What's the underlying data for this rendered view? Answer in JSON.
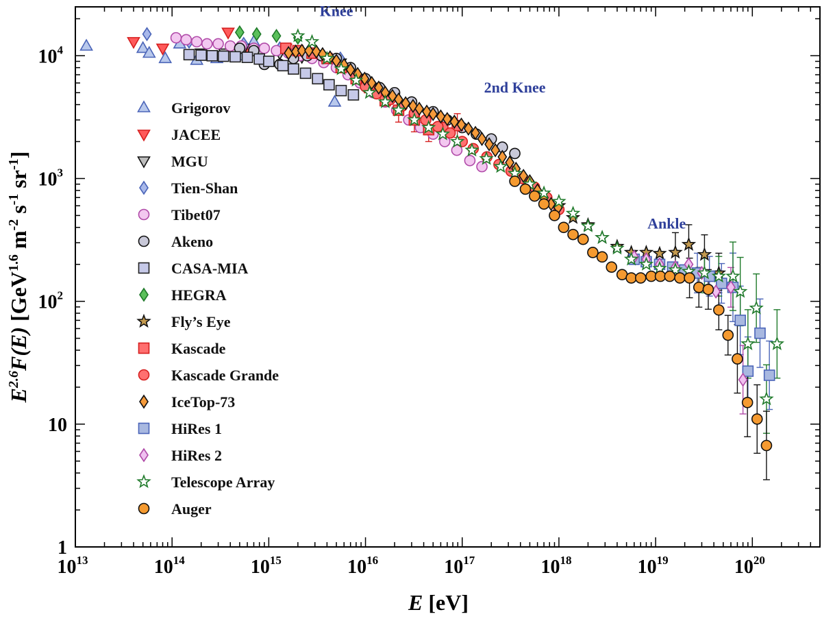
{
  "chart_data": {
    "type": "scatter",
    "xscale": "log",
    "yscale": "log",
    "xlim": [
      10000000000000.0,
      5e+20
    ],
    "ylim": [
      1,
      25000
    ],
    "xlabel": {
      "var": "E",
      "unit": " [eV]"
    },
    "ylabel": {
      "e": "E",
      "e_sup": "2.6",
      "f": "F(E)",
      "open": " [GeV",
      "gev_sup": "1.6",
      "m": " m",
      "m_sup": "-2",
      "s": " s",
      "s_sup": "-1",
      "sr": " sr",
      "sr_sup": "-1",
      "close": "]"
    },
    "x_ticks": [
      {
        "base": "10",
        "exp": "13",
        "value": 10000000000000.0
      },
      {
        "base": "10",
        "exp": "14",
        "value": 100000000000000.0
      },
      {
        "base": "10",
        "exp": "15",
        "value": 1000000000000000.0
      },
      {
        "base": "10",
        "exp": "16",
        "value": 1e+16
      },
      {
        "base": "10",
        "exp": "17",
        "value": 1e+17
      },
      {
        "base": "10",
        "exp": "18",
        "value": 1e+18
      },
      {
        "base": "10",
        "exp": "19",
        "value": 1e+19
      },
      {
        "base": "10",
        "exp": "20",
        "value": 1e+20
      }
    ],
    "y_ticks": [
      {
        "base": "1",
        "exp": "",
        "value": 1
      },
      {
        "base": "10",
        "exp": "",
        "value": 10
      },
      {
        "base": "10",
        "exp": "2",
        "value": 100
      },
      {
        "base": "10",
        "exp": "3",
        "value": 1000
      },
      {
        "base": "10",
        "exp": "4",
        "value": 10000
      }
    ],
    "annotations": [
      {
        "text": "Knee",
        "x": 5000000000000000.0,
        "y": 21000
      },
      {
        "text": "2nd Knee",
        "x": 3.5e+17,
        "y": 5000
      },
      {
        "text": "Ankle",
        "x": 1.3e+19,
        "y": 390
      }
    ],
    "series": [
      {
        "name": "Grigorov",
        "marker": "triangle-up",
        "fill": "#b8c8ec",
        "stroke": "#4a64b8",
        "x": [
          13000000000000.0,
          50000000000000.0,
          58000000000000.0,
          85000000000000.0,
          120000000000000.0,
          180000000000000.0,
          290000000000000.0,
          500000000000000.0,
          700000000000000.0,
          4800000000000000.0
        ],
        "y": [
          12000,
          11500,
          10500,
          9500,
          12500,
          9200,
          9500,
          10000,
          13000,
          4200
        ]
      },
      {
        "name": "JACEE",
        "marker": "triangle-down",
        "fill": "#ff5a5a",
        "stroke": "#d61f1f",
        "x": [
          40000000000000.0,
          80000000000000.0,
          380000000000000.0,
          650000000000000.0,
          1500000000000000.0
        ],
        "y": [
          13000,
          11500,
          15500,
          10500,
          11500
        ]
      },
      {
        "name": "MGU",
        "marker": "triangle-down",
        "fill": "#bdbdbd",
        "stroke": "#111111",
        "x": [
          200000000000000.0,
          350000000000000.0,
          550000000000000.0,
          800000000000000.0,
          1300000000000000.0,
          2200000000000000.0,
          3500000000000000.0,
          5500000000000000.0
        ],
        "y": [
          10500,
          10500,
          11500,
          10500,
          10500,
          9800,
          9500,
          8700
        ]
      },
      {
        "name": "Tien-Shan",
        "marker": "diamond",
        "fill": "#a8b8ea",
        "stroke": "#4a64b8",
        "x": [
          55000000000000.0,
          150000000000000.0,
          550000000000000.0,
          1300000000000000.0,
          2500000000000000.0,
          5500000000000000.0
        ],
        "y": [
          15000,
          13000,
          12500,
          11500,
          10500,
          9500
        ]
      },
      {
        "name": "Tibet07",
        "marker": "circle",
        "fill": "#f3c8f0",
        "stroke": "#b04aa8",
        "x": [
          110000000000000.0,
          140000000000000.0,
          180000000000000.0,
          230000000000000.0,
          300000000000000.0,
          400000000000000.0,
          520000000000000.0,
          700000000000000.0,
          900000000000000.0,
          1200000000000000.0,
          1600000000000000.0,
          2100000000000000.0,
          2800000000000000.0,
          3700000000000000.0,
          5000000000000000.0,
          6600000000000000.0,
          8800000000000000.0,
          1.2e+16,
          1.6e+16,
          2.1e+16,
          2.8e+16,
          3.7e+16,
          5e+16,
          6.6e+16,
          8.8e+16,
          1.2e+17,
          1.6e+17
        ],
        "y": [
          14000,
          13500,
          13000,
          12500,
          12500,
          12000,
          12000,
          11500,
          11500,
          11000,
          10500,
          10000,
          9500,
          8800,
          8000,
          7000,
          6000,
          5000,
          4200,
          3600,
          3000,
          2600,
          2300,
          2000,
          1700,
          1400,
          1250
        ]
      },
      {
        "name": "Akeno",
        "marker": "circle",
        "fill": "#c8c8d8",
        "stroke": "#111111",
        "x": [
          500000000000000.0,
          700000000000000.0,
          900000000000000.0,
          1300000000000000.0,
          1800000000000000.0,
          2500000000000000.0,
          3500000000000000.0,
          5000000000000000.0,
          7000000000000000.0,
          1e+16,
          1.4e+16,
          2e+16,
          3e+16,
          5e+16,
          7e+16,
          1e+17,
          1.4e+17,
          2e+17,
          2.6e+17,
          3.5e+17
        ],
        "y": [
          11500,
          11000,
          8500,
          8500,
          9500,
          10000,
          10000,
          9500,
          8000,
          6500,
          5500,
          5000,
          4200,
          3500,
          3000,
          2600,
          2300,
          2100,
          1800,
          1600
        ]
      },
      {
        "name": "CASA-MIA",
        "marker": "square",
        "fill": "#c6c9e8",
        "stroke": "#222222",
        "x": [
          150000000000000.0,
          200000000000000.0,
          260000000000000.0,
          340000000000000.0,
          450000000000000.0,
          600000000000000.0,
          800000000000000.0,
          1000000000000000.0,
          1400000000000000.0,
          1800000000000000.0,
          2400000000000000.0,
          3200000000000000.0,
          4200000000000000.0,
          5600000000000000.0,
          7500000000000000.0
        ],
        "y": [
          10200,
          10100,
          10000,
          9900,
          9800,
          9700,
          9400,
          9000,
          8300,
          7800,
          7200,
          6500,
          5800,
          5200,
          4800
        ]
      },
      {
        "name": "HEGRA",
        "marker": "diamond",
        "fill": "#5bc05b",
        "stroke": "#1f7a2a",
        "x": [
          500000000000000.0,
          750000000000000.0,
          1200000000000000.0,
          2000000000000000.0
        ],
        "y": [
          15500,
          15000,
          14500,
          14000
        ]
      },
      {
        "name": "Fly’s Eye",
        "marker": "star",
        "fill": "#c49a4e",
        "stroke": "#111111",
        "x": [
          1e+18,
          1.4e+18,
          2e+18,
          2.8e+18,
          4e+18,
          5.6e+18,
          8e+18,
          1.1e+19,
          1.6e+19,
          2.2e+19,
          3.2e+19,
          4.5e+19
        ],
        "y": [
          600,
          480,
          420,
          330,
          280,
          250,
          250,
          245,
          250,
          290,
          240,
          170
        ]
      },
      {
        "name": "Kascade",
        "marker": "square",
        "fill": "#ff6f6f",
        "stroke": "#d61f1f",
        "x": [
          1500000000000000.0,
          2000000000000000.0,
          2800000000000000.0,
          4000000000000000.0,
          5600000000000000.0,
          8000000000000000.0,
          1.1e+16,
          1.6e+16,
          2.2e+16,
          3.2e+16,
          4.5e+16,
          6.3e+16,
          8.9e+16
        ],
        "y": [
          11500,
          11000,
          10500,
          9500,
          8000,
          6500,
          5500,
          4300,
          3600,
          3000,
          2500,
          2600,
          2700
        ]
      },
      {
        "name": "Kascade Grande",
        "marker": "circle",
        "fill": "#ff7070",
        "stroke": "#d61f1f",
        "x": [
          1e+16,
          1.3e+16,
          1.8e+16,
          2.4e+16,
          3.2e+16,
          4.2e+16,
          5.6e+16,
          7.5e+16,
          1e+17,
          1.3e+17,
          1.8e+17,
          2.4e+17,
          3.2e+17,
          4.2e+17,
          5.6e+17,
          7.5e+17,
          1e+18
        ],
        "y": [
          5600,
          4900,
          4400,
          3900,
          3400,
          3000,
          2650,
          2350,
          2000,
          1750,
          1500,
          1300,
          1150,
          1000,
          850,
          700,
          560
        ]
      },
      {
        "name": "IceTop-73",
        "marker": "diamond",
        "fill": "#f59a3a",
        "stroke": "#111111",
        "x": [
          1600000000000000.0,
          1900000000000000.0,
          2200000000000000.0,
          2600000000000000.0,
          3100000000000000.0,
          3600000000000000.0,
          4300000000000000.0,
          5000000000000000.0,
          6000000000000000.0,
          7000000000000000.0,
          8300000000000000.0,
          9800000000000000.0,
          1.16e+16,
          1.37e+16,
          1.6e+16,
          1.9e+16,
          2.2e+16,
          2.6e+16,
          3.1e+16,
          3.6e+16,
          4.3e+16,
          5e+16,
          6e+16,
          7e+16,
          8.3e+16,
          9.8e+16,
          1.16e+17,
          1.37e+17,
          1.6e+17,
          1.9e+17,
          2.2e+17,
          2.6e+17,
          3.1e+17,
          3.6e+17,
          4.3e+17,
          5e+17,
          6e+17,
          7e+17,
          8.3e+17,
          9.8e+17
        ],
        "y": [
          10500,
          10800,
          11000,
          11000,
          10800,
          10300,
          9700,
          9100,
          8400,
          7700,
          7100,
          6500,
          6000,
          5500,
          5000,
          4700,
          4400,
          4100,
          3900,
          3700,
          3500,
          3350,
          3200,
          3050,
          2900,
          2750,
          2550,
          2350,
          2100,
          1900,
          1700,
          1500,
          1350,
          1200,
          1050,
          950,
          800,
          700,
          620,
          580
        ]
      },
      {
        "name": "HiRes 1",
        "marker": "square",
        "fill": "#a8b8e0",
        "stroke": "#4a64b8",
        "x": [
          6e+18,
          8e+18,
          1.1e+19,
          1.5e+19,
          2e+19,
          2.7e+19,
          3.6e+19,
          4.8e+19,
          6.3e+19,
          7.5e+19,
          9e+19,
          1.2e+20,
          1.5e+20
        ],
        "y": [
          220,
          210,
          200,
          190,
          180,
          170,
          160,
          140,
          130,
          70,
          27,
          55,
          25
        ]
      },
      {
        "name": "HiRes 2",
        "marker": "diamond",
        "fill": "#f0c0f0",
        "stroke": "#b04aa8",
        "x": [
          6e+18,
          8e+18,
          1.1e+19,
          1.6e+19,
          2.2e+19,
          3e+19,
          4.2e+19,
          6e+19,
          8e+19
        ],
        "y": [
          230,
          220,
          200,
          190,
          200,
          170,
          120,
          130,
          23
        ]
      },
      {
        "name": "Telescope Array",
        "marker": "star",
        "fill": "#ffffff",
        "stroke": "#1f7a2a",
        "x": [
          2000000000000000.0,
          2800000000000000.0,
          4000000000000000.0,
          5600000000000000.0,
          8000000000000000.0,
          1.1e+16,
          1.6e+16,
          2.2e+16,
          3.2e+16,
          4.5e+16,
          6.3e+16,
          8.9e+16,
          1.26e+17,
          1.78e+17,
          2.5e+17,
          3.5e+17,
          5e+17,
          7e+17,
          1e+18,
          1.4e+18,
          2e+18,
          2.8e+18,
          4e+18,
          5.6e+18,
          8e+18,
          1.1e+19,
          1.6e+19,
          2.2e+19,
          3.2e+19,
          4.5e+19,
          6.3e+19,
          7.5e+19,
          9e+19,
          1.1e+20,
          1.4e+20,
          1.8e+20
        ],
        "y": [
          14500,
          13000,
          9500,
          7800,
          6300,
          5000,
          4200,
          3600,
          3000,
          2600,
          2300,
          2000,
          1700,
          1450,
          1250,
          1100,
          900,
          760,
          650,
          520,
          410,
          330,
          270,
          220,
          200,
          185,
          180,
          175,
          170,
          160,
          160,
          120,
          45,
          88,
          16,
          45
        ]
      },
      {
        "name": "Auger",
        "marker": "circle",
        "fill": "#f59a30",
        "stroke": "#111111",
        "x": [
          3.5e+17,
          4.5e+17,
          5.6e+17,
          7e+17,
          9e+17,
          1.12e+18,
          1.4e+18,
          1.78e+18,
          2.24e+18,
          2.8e+18,
          3.5e+18,
          4.5e+18,
          5.6e+18,
          7e+18,
          9e+18,
          1.12e+19,
          1.4e+19,
          1.78e+19,
          2.24e+19,
          2.8e+19,
          3.5e+19,
          4.5e+19,
          5.6e+19,
          7e+19,
          8.9e+19,
          1.12e+20,
          1.4e+20
        ],
        "y": [
          950,
          820,
          720,
          620,
          500,
          400,
          350,
          320,
          250,
          230,
          190,
          165,
          155,
          155,
          160,
          160,
          160,
          155,
          155,
          130,
          125,
          85,
          53,
          34,
          15,
          11,
          6.7
        ]
      }
    ]
  }
}
